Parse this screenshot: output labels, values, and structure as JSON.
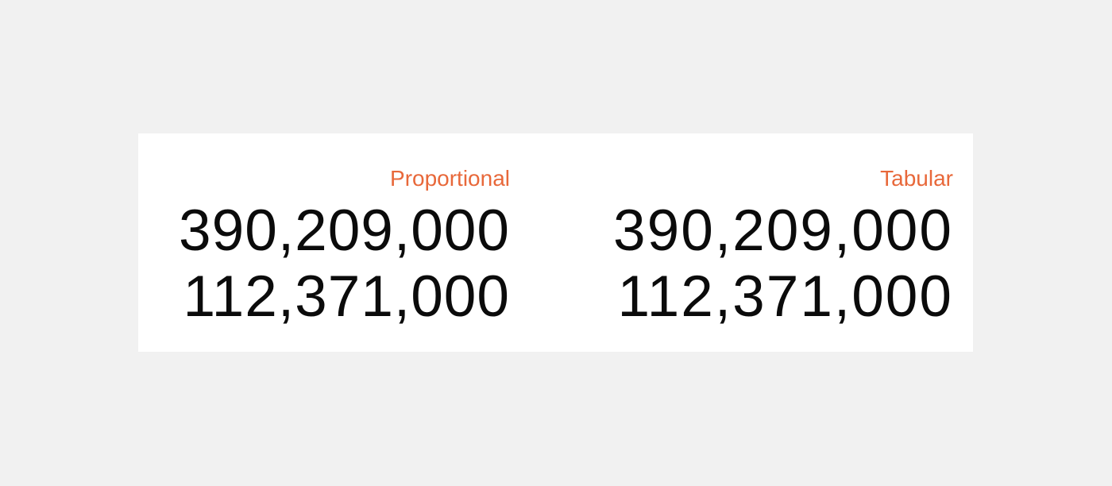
{
  "proportional": {
    "label": "Proportional",
    "values": [
      "390,209,000",
      "112,371,000"
    ]
  },
  "tabular": {
    "label": "Tabular",
    "values": [
      "390,209,000",
      "112,371,000"
    ]
  },
  "colors": {
    "background": "#f1f1f1",
    "card": "#ffffff",
    "label_accent": "#e8683a",
    "number_text": "#0b0b0b"
  }
}
